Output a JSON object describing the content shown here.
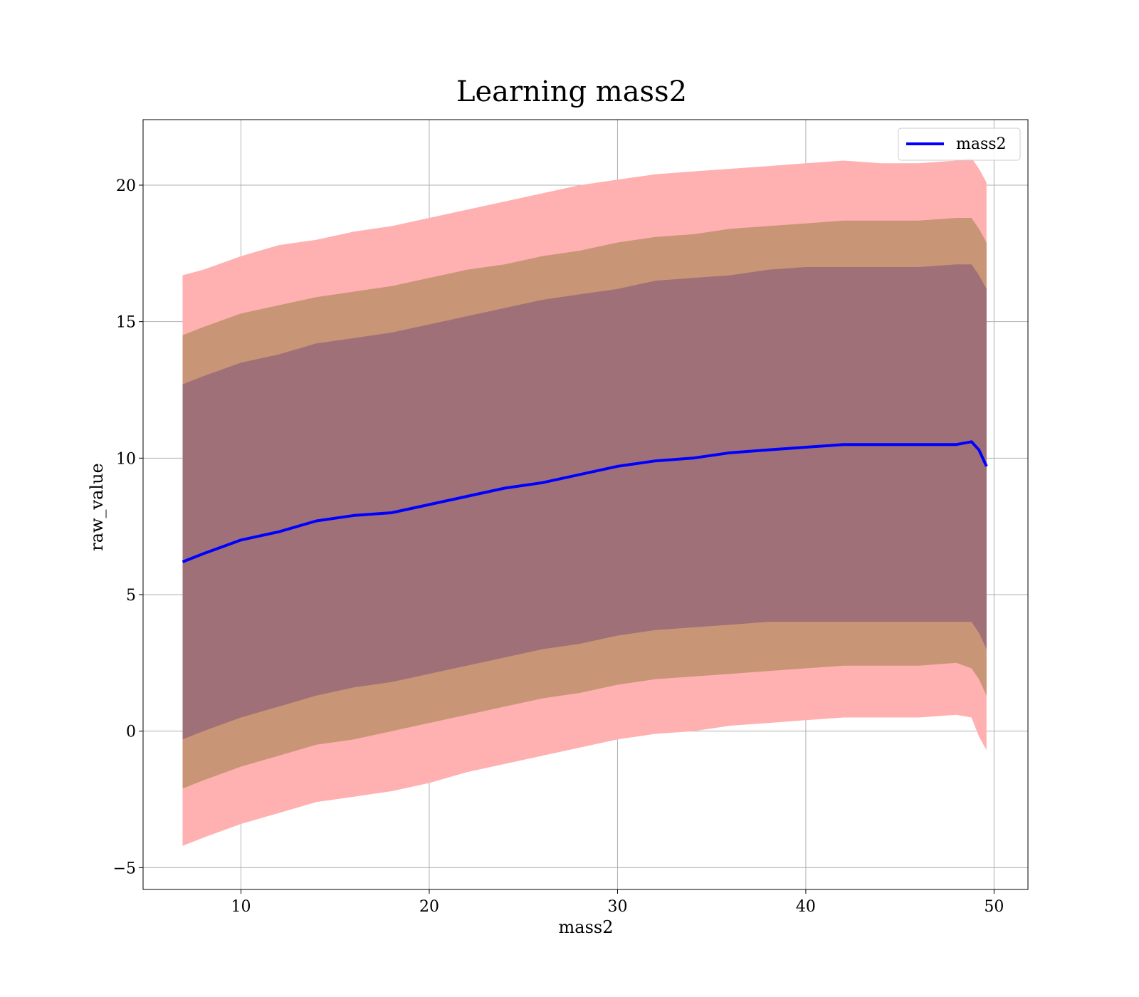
{
  "chart_data": {
    "type": "area",
    "title": "Learning mass2",
    "xlabel": "mass2",
    "ylabel": "raw_value",
    "xlim": [
      4.8,
      51.8
    ],
    "ylim": [
      -5.8,
      22.4
    ],
    "xticks": [
      10,
      20,
      30,
      40,
      50
    ],
    "yticks": [
      -5,
      0,
      5,
      10,
      15,
      20
    ],
    "ytick_labels": [
      "−5",
      "0",
      "5",
      "10",
      "15",
      "20"
    ],
    "grid": true,
    "legend": {
      "position": "top-right",
      "entries": [
        "mass2"
      ]
    },
    "x": [
      6.9,
      8,
      10,
      12,
      14,
      16,
      18,
      20,
      22,
      24,
      26,
      28,
      30,
      32,
      34,
      36,
      38,
      40,
      42,
      44,
      46,
      48,
      48.8,
      49.2,
      49.6
    ],
    "series": [
      {
        "name": "mass2",
        "color": "#0000ff",
        "values": [
          6.2,
          6.5,
          7.0,
          7.3,
          7.7,
          7.9,
          8.0,
          8.3,
          8.6,
          8.9,
          9.1,
          9.4,
          9.7,
          9.9,
          10.0,
          10.2,
          10.3,
          10.4,
          10.5,
          10.5,
          10.5,
          10.5,
          10.6,
          10.3,
          9.7
        ]
      }
    ],
    "bands": [
      {
        "sigma": 3,
        "color": "#ffb0b0",
        "lower": [
          -4.2,
          -3.9,
          -3.4,
          -3.0,
          -2.6,
          -2.4,
          -2.2,
          -1.9,
          -1.5,
          -1.2,
          -0.9,
          -0.6,
          -0.3,
          -0.1,
          0.0,
          0.2,
          0.3,
          0.4,
          0.5,
          0.5,
          0.5,
          0.6,
          0.5,
          -0.2,
          -0.7
        ],
        "upper": [
          16.7,
          16.9,
          17.4,
          17.8,
          18.0,
          18.3,
          18.5,
          18.8,
          19.1,
          19.4,
          19.7,
          20.0,
          20.2,
          20.4,
          20.5,
          20.6,
          20.7,
          20.8,
          20.9,
          20.8,
          20.8,
          20.9,
          21.0,
          20.6,
          20.1
        ]
      },
      {
        "sigma": 2,
        "color": "#c89676",
        "lower": [
          -2.1,
          -1.8,
          -1.3,
          -0.9,
          -0.5,
          -0.3,
          0.0,
          0.3,
          0.6,
          0.9,
          1.2,
          1.4,
          1.7,
          1.9,
          2.0,
          2.1,
          2.2,
          2.3,
          2.4,
          2.4,
          2.4,
          2.5,
          2.3,
          1.9,
          1.3
        ],
        "upper": [
          14.5,
          14.8,
          15.3,
          15.6,
          15.9,
          16.1,
          16.3,
          16.6,
          16.9,
          17.1,
          17.4,
          17.6,
          17.9,
          18.1,
          18.2,
          18.4,
          18.5,
          18.6,
          18.7,
          18.7,
          18.7,
          18.8,
          18.8,
          18.4,
          17.9
        ]
      },
      {
        "sigma": 1,
        "color": "#a07078",
        "lower": [
          -0.3,
          0.0,
          0.5,
          0.9,
          1.3,
          1.6,
          1.8,
          2.1,
          2.4,
          2.7,
          3.0,
          3.2,
          3.5,
          3.7,
          3.8,
          3.9,
          4.0,
          4.0,
          4.0,
          4.0,
          4.0,
          4.0,
          4.0,
          3.6,
          3.0
        ],
        "upper": [
          12.7,
          13.0,
          13.5,
          13.8,
          14.2,
          14.4,
          14.6,
          14.9,
          15.2,
          15.5,
          15.8,
          16.0,
          16.2,
          16.5,
          16.6,
          16.7,
          16.9,
          17.0,
          17.0,
          17.0,
          17.0,
          17.1,
          17.1,
          16.7,
          16.2
        ]
      }
    ]
  }
}
